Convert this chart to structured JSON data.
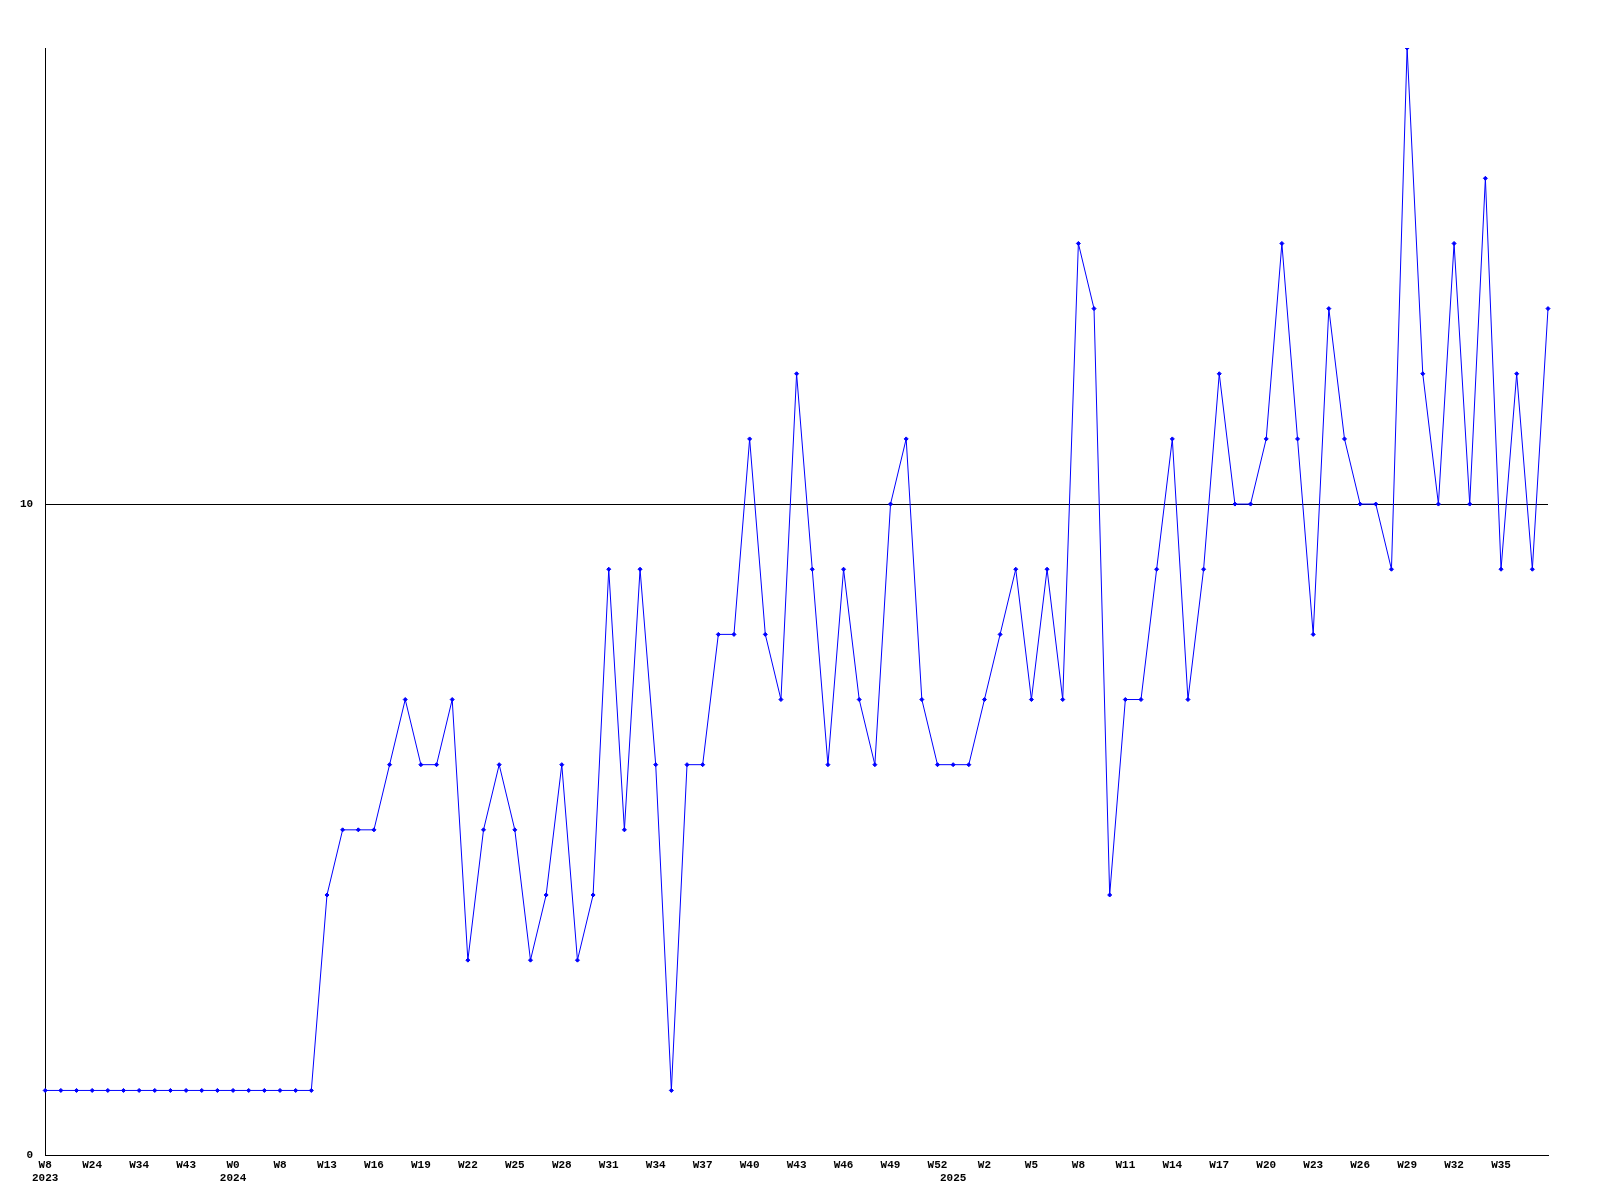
{
  "chart_data": {
    "type": "line",
    "categories": [
      "W8\n2023",
      null,
      null,
      "W24",
      null,
      null,
      "W34",
      null,
      null,
      "W43",
      null,
      null,
      "W0\n2024",
      null,
      null,
      "W8",
      null,
      null,
      "W13",
      null,
      null,
      "W16",
      null,
      null,
      "W19",
      null,
      null,
      "W22",
      null,
      null,
      "W25",
      null,
      null,
      "W28",
      null,
      null,
      "W31",
      null,
      null,
      "W34",
      null,
      null,
      "W37",
      null,
      null,
      "W40",
      null,
      null,
      "W43",
      null,
      null,
      "W46",
      null,
      null,
      "W49",
      null,
      null,
      "W52",
      "\n2025",
      null,
      "W2",
      null,
      null,
      "W5",
      null,
      null,
      "W8",
      null,
      null,
      "W11",
      null,
      null,
      "W14",
      null,
      null,
      "W17",
      null,
      null,
      "W20",
      null,
      null,
      "W23",
      null,
      null,
      "W26",
      null,
      null,
      "W29",
      null,
      null,
      "W32",
      null,
      null,
      "W35",
      null,
      null,
      null
    ],
    "series": [
      {
        "color": "#0000ff",
        "values": [
          1,
          1,
          1,
          1,
          1,
          1,
          1,
          1,
          1,
          1,
          1,
          1,
          1,
          1,
          1,
          1,
          1,
          1,
          4,
          5,
          5,
          5,
          6,
          7,
          6,
          6,
          7,
          3,
          5,
          6,
          5,
          3,
          4,
          6,
          3,
          4,
          9,
          5,
          9,
          6,
          1,
          6,
          6,
          8,
          8,
          11,
          8,
          7,
          12,
          9,
          6,
          9,
          7,
          6,
          10,
          11,
          7,
          6,
          6,
          6,
          7,
          8,
          9,
          7,
          9,
          7,
          14,
          13,
          4,
          7,
          7,
          9,
          11,
          7,
          9,
          12,
          10,
          10,
          11,
          14,
          11,
          8,
          13,
          11,
          10,
          10,
          9,
          17,
          12,
          10,
          14,
          10,
          15,
          9,
          12,
          9,
          13
        ]
      }
    ],
    "ylim": [
      0,
      17
    ],
    "yticks": [
      0,
      10
    ],
    "grid": "y",
    "marker": "diamond",
    "line_style": "solid",
    "legend": false
  }
}
